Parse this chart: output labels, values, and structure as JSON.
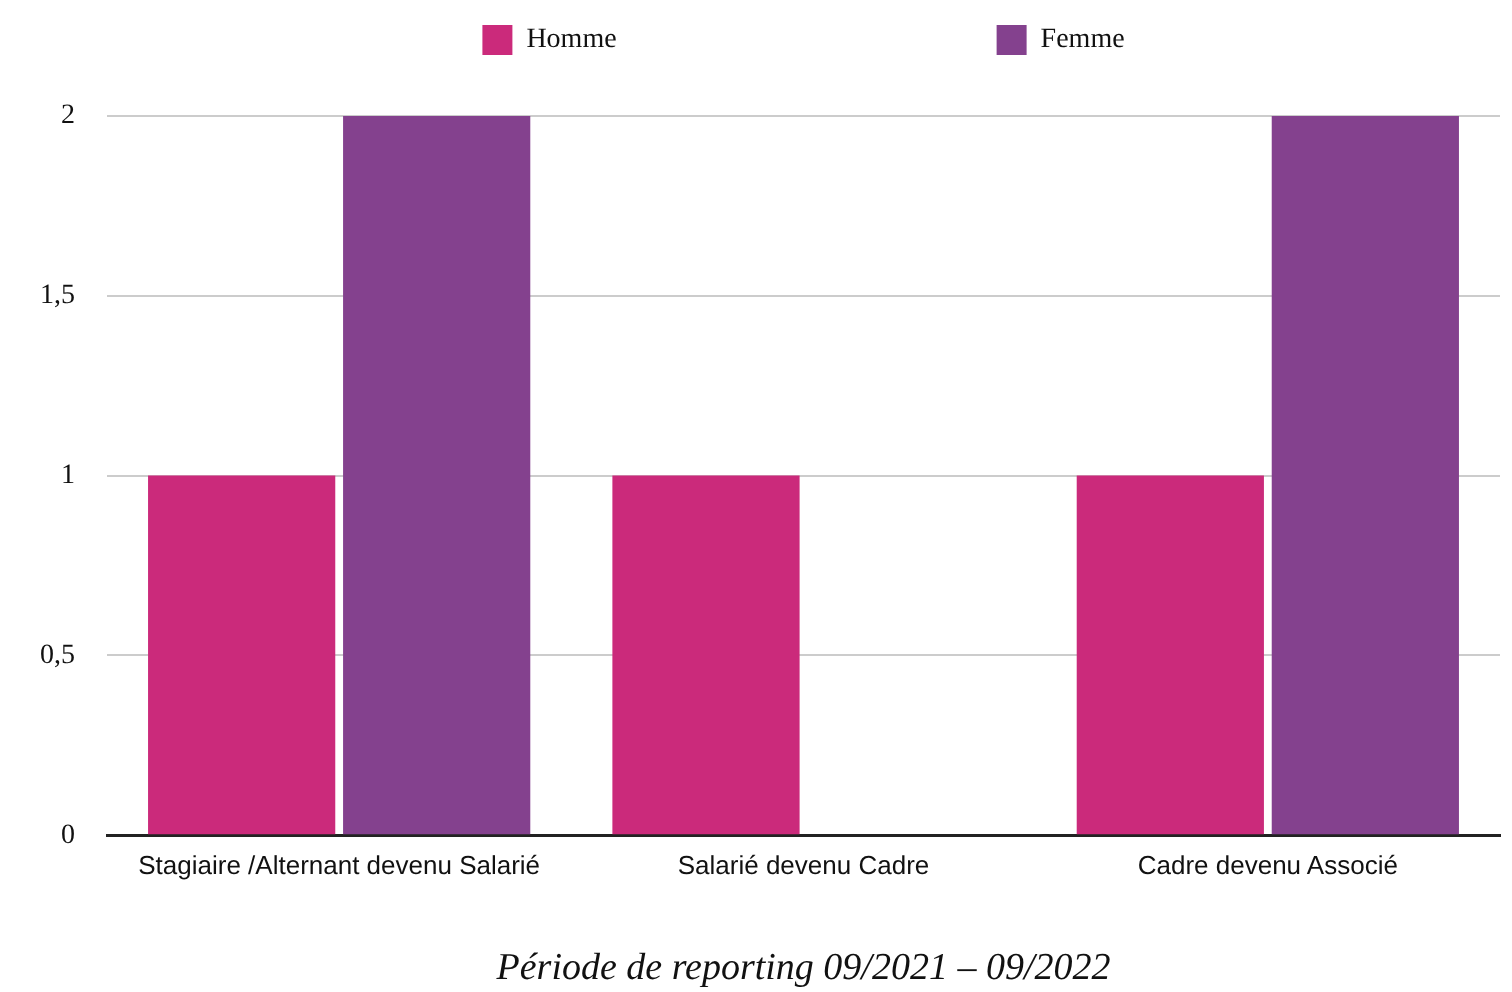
{
  "chart_data": {
    "type": "bar",
    "xlabel": "Période de reporting 09/2021 – 09/2022",
    "categories": [
      "Stagiaire /Alternant devenu Salarié",
      "Salarié devenu Cadre",
      "Cadre devenu Associé"
    ],
    "series": [
      {
        "name": "Homme",
        "color": "#cb2a7b",
        "values": [
          1,
          1,
          1
        ]
      },
      {
        "name": "Femme",
        "color": "#84418e",
        "values": [
          2,
          0,
          2
        ]
      }
    ],
    "ylim": [
      0,
      2
    ],
    "yticks": [
      0,
      {
        "value": 0.5,
        "label": "0,5"
      },
      1,
      {
        "value": 1.5,
        "label": "1,5"
      },
      2
    ],
    "grid": "y",
    "legend": "top"
  }
}
